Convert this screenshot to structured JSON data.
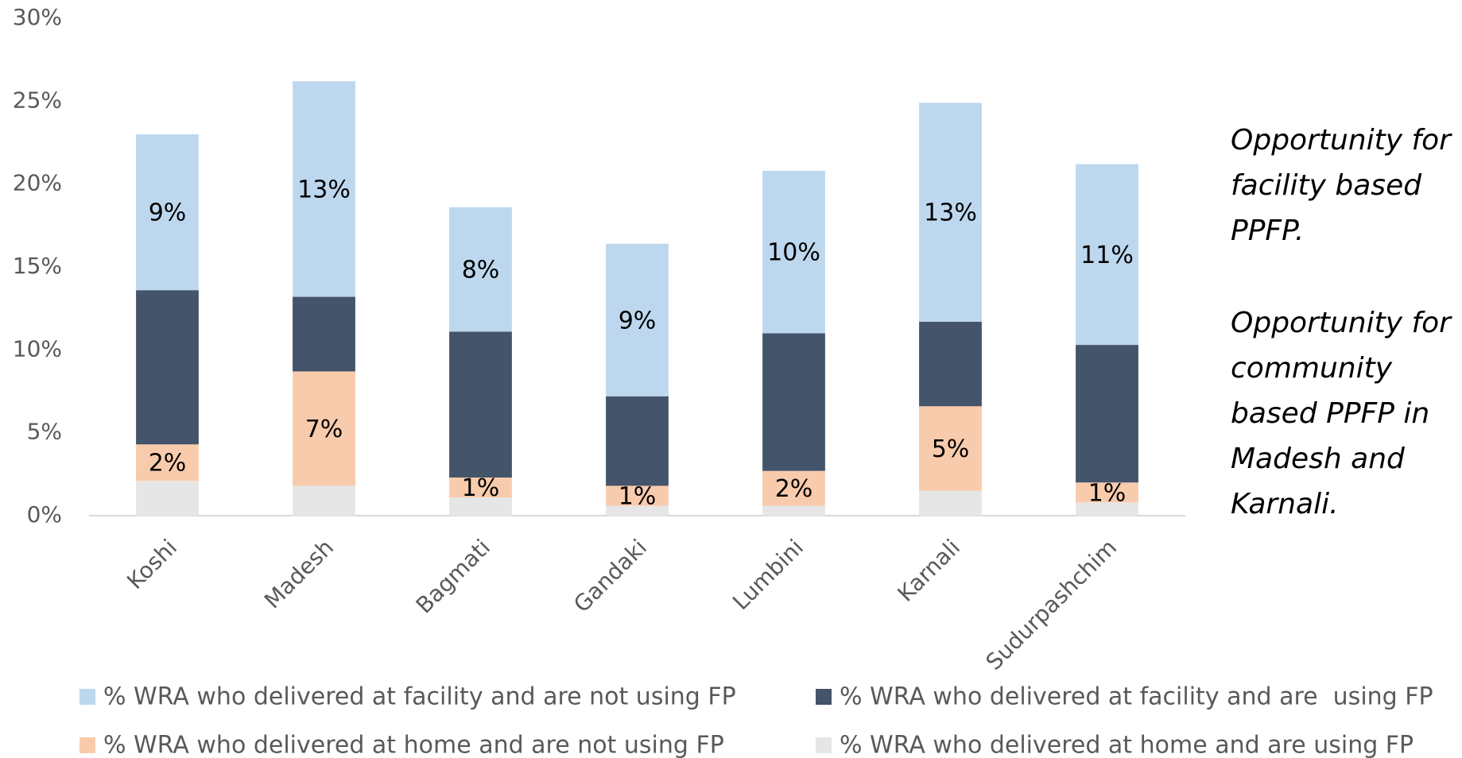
{
  "chart_data": {
    "type": "stacked_bar",
    "categories": [
      "Koshi",
      "Madesh",
      "Bagmati",
      "Gandaki",
      "Lumbini",
      "Karnali",
      "Sudurpashchim"
    ],
    "series": [
      {
        "name": "% WRA who delivered at home and are using FP",
        "color": "#e7e6e6",
        "values": [
          2.1,
          1.8,
          1.1,
          0.6,
          0.6,
          1.5,
          0.8
        ]
      },
      {
        "name": "% WRA who delivered at home and are not using FP",
        "color": "#f8cbad",
        "values": [
          2.2,
          6.9,
          1.2,
          1.2,
          2.1,
          5.1,
          1.2
        ],
        "value_labels": [
          "2%",
          "7%",
          "1%",
          "1%",
          "2%",
          "5%",
          "1%"
        ]
      },
      {
        "name": "% WRA who delivered at facility and are  using FP",
        "color": "#44546a",
        "values": [
          9.3,
          4.5,
          8.8,
          5.4,
          8.3,
          5.1,
          8.3
        ]
      },
      {
        "name": "% WRA who delivered at facility and are not using FP",
        "color": "#bdd7ee",
        "values": [
          9.4,
          13.0,
          7.5,
          9.2,
          9.8,
          13.2,
          10.9
        ],
        "value_labels": [
          "9%",
          "13%",
          "8%",
          "9%",
          "10%",
          "13%",
          "11%"
        ]
      }
    ],
    "ylim": [
      0,
      30
    ],
    "yticks": [
      {
        "value": 0,
        "label": "0%"
      },
      {
        "value": 5,
        "label": "5%"
      },
      {
        "value": 10,
        "label": "10%"
      },
      {
        "value": 15,
        "label": "15%"
      },
      {
        "value": 20,
        "label": "20%"
      },
      {
        "value": 25,
        "label": "25%"
      },
      {
        "value": 30,
        "label": "30%"
      }
    ],
    "annotations": [
      "Opportunity for facility based PPFP.",
      "Opportunity for community based PPFP in Madesh and Karnali."
    ]
  }
}
